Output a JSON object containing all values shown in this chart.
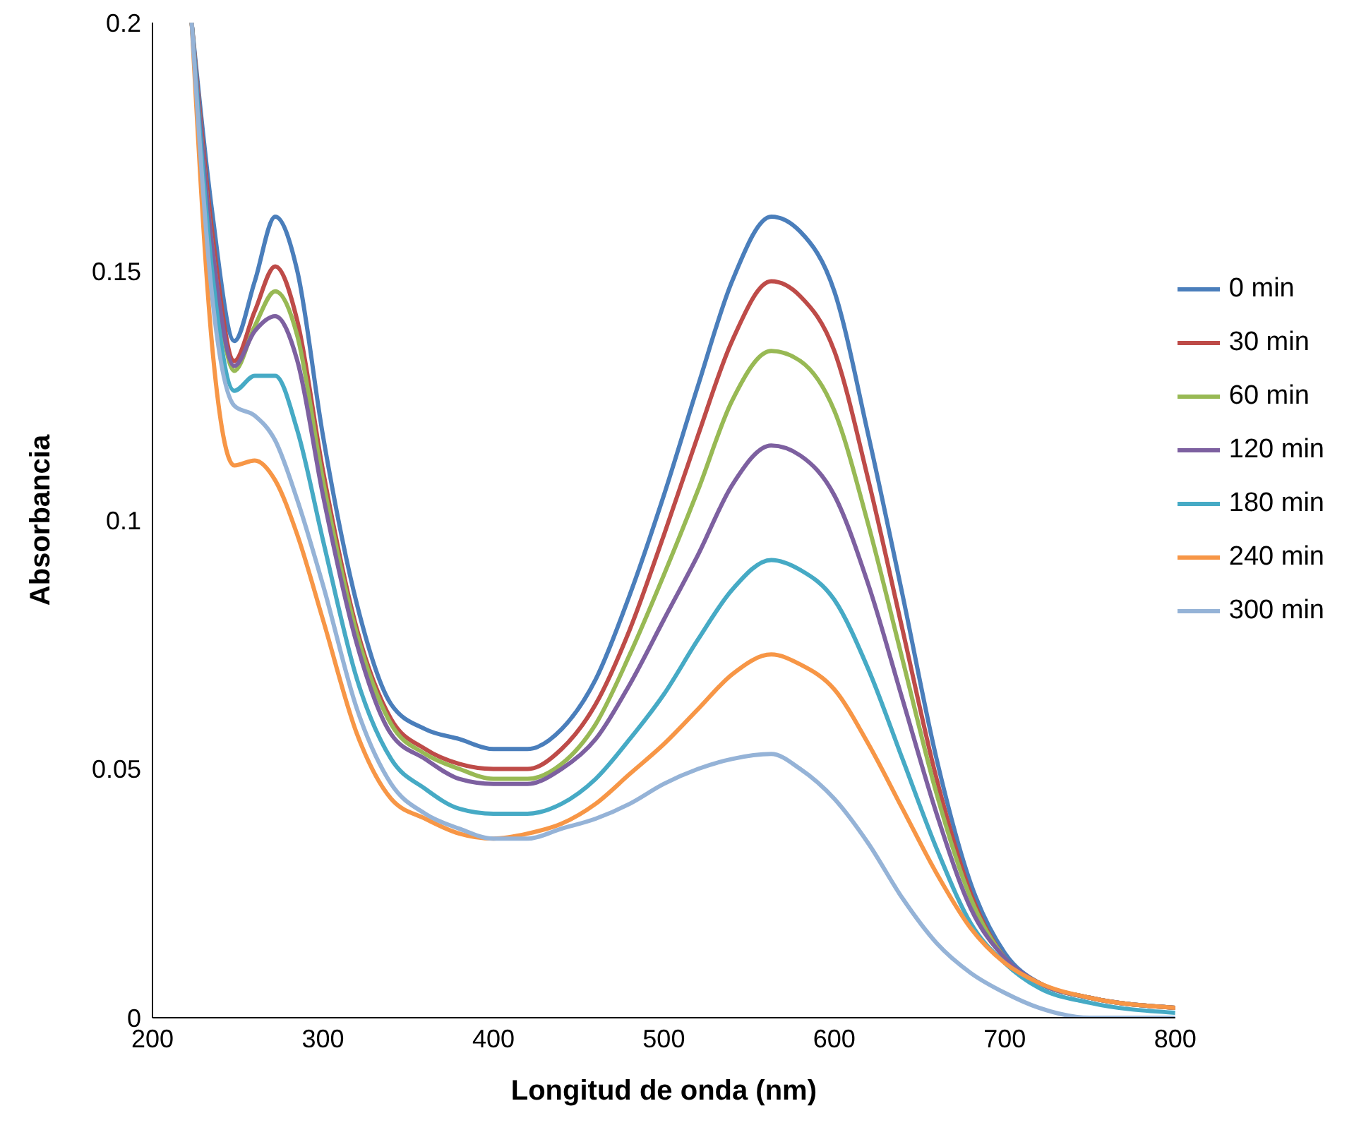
{
  "chart_data": {
    "type": "line",
    "xlabel": "Longitud de onda (nm)",
    "ylabel": "Absorbancia",
    "x": [
      223,
      235,
      248,
      260,
      272,
      285,
      300,
      320,
      340,
      360,
      380,
      400,
      420,
      440,
      460,
      480,
      500,
      520,
      540,
      563,
      580,
      600,
      620,
      640,
      660,
      680,
      700,
      720,
      750,
      800
    ],
    "series": [
      {
        "name": "0 min",
        "color": "#4a7ebb",
        "values": [
          0.2,
          0.162,
          0.136,
          0.148,
          0.161,
          0.15,
          0.117,
          0.083,
          0.063,
          0.058,
          0.056,
          0.054,
          0.054,
          0.058,
          0.068,
          0.085,
          0.105,
          0.127,
          0.148,
          0.161,
          0.158,
          0.146,
          0.117,
          0.085,
          0.052,
          0.027,
          0.013,
          0.007,
          0.004,
          0.002
        ]
      },
      {
        "name": "30 min",
        "color": "#be4b48",
        "values": [
          0.2,
          0.158,
          0.132,
          0.142,
          0.151,
          0.14,
          0.11,
          0.078,
          0.06,
          0.054,
          0.051,
          0.05,
          0.05,
          0.054,
          0.063,
          0.078,
          0.097,
          0.117,
          0.136,
          0.148,
          0.145,
          0.134,
          0.108,
          0.078,
          0.048,
          0.025,
          0.012,
          0.007,
          0.004,
          0.002
        ]
      },
      {
        "name": "60 min",
        "color": "#98b954",
        "values": [
          0.2,
          0.155,
          0.13,
          0.139,
          0.146,
          0.137,
          0.108,
          0.077,
          0.059,
          0.053,
          0.05,
          0.048,
          0.048,
          0.051,
          0.059,
          0.073,
          0.089,
          0.106,
          0.124,
          0.134,
          0.132,
          0.122,
          0.099,
          0.072,
          0.045,
          0.024,
          0.012,
          0.007,
          0.004,
          0.002
        ]
      },
      {
        "name": "120 min",
        "color": "#7d60a0",
        "values": [
          0.2,
          0.155,
          0.131,
          0.138,
          0.141,
          0.132,
          0.105,
          0.075,
          0.057,
          0.052,
          0.048,
          0.047,
          0.047,
          0.05,
          0.056,
          0.067,
          0.08,
          0.093,
          0.107,
          0.115,
          0.113,
          0.105,
          0.087,
          0.064,
          0.041,
          0.022,
          0.012,
          0.007,
          0.004,
          0.002
        ]
      },
      {
        "name": "180 min",
        "color": "#46aac5",
        "values": [
          0.2,
          0.15,
          0.126,
          0.129,
          0.129,
          0.118,
          0.096,
          0.068,
          0.052,
          0.046,
          0.042,
          0.041,
          0.041,
          0.043,
          0.048,
          0.056,
          0.065,
          0.076,
          0.086,
          0.092,
          0.09,
          0.084,
          0.07,
          0.052,
          0.034,
          0.019,
          0.011,
          0.006,
          0.003,
          0.001
        ]
      },
      {
        "name": "240 min",
        "color": "#f79646",
        "values": [
          0.2,
          0.135,
          0.111,
          0.112,
          0.108,
          0.097,
          0.08,
          0.057,
          0.044,
          0.04,
          0.037,
          0.036,
          0.037,
          0.039,
          0.043,
          0.049,
          0.055,
          0.062,
          0.069,
          0.073,
          0.071,
          0.066,
          0.055,
          0.042,
          0.029,
          0.018,
          0.011,
          0.007,
          0.004,
          0.002
        ]
      },
      {
        "name": "300 min",
        "color": "#95b3d7",
        "values": [
          0.2,
          0.145,
          0.123,
          0.121,
          0.116,
          0.104,
          0.087,
          0.062,
          0.047,
          0.041,
          0.038,
          0.036,
          0.036,
          0.038,
          0.04,
          0.043,
          0.047,
          0.05,
          0.052,
          0.053,
          0.05,
          0.044,
          0.035,
          0.024,
          0.015,
          0.009,
          0.005,
          0.002,
          0,
          0
        ]
      }
    ],
    "xlim": [
      200,
      800
    ],
    "xticks": [
      200,
      300,
      400,
      500,
      600,
      700,
      800
    ],
    "ylim": [
      0,
      0.2
    ],
    "yticks": [
      0,
      0.05,
      0.1,
      0.15,
      0.2
    ],
    "grid": false,
    "legend": "right",
    "line_style": "solid"
  }
}
